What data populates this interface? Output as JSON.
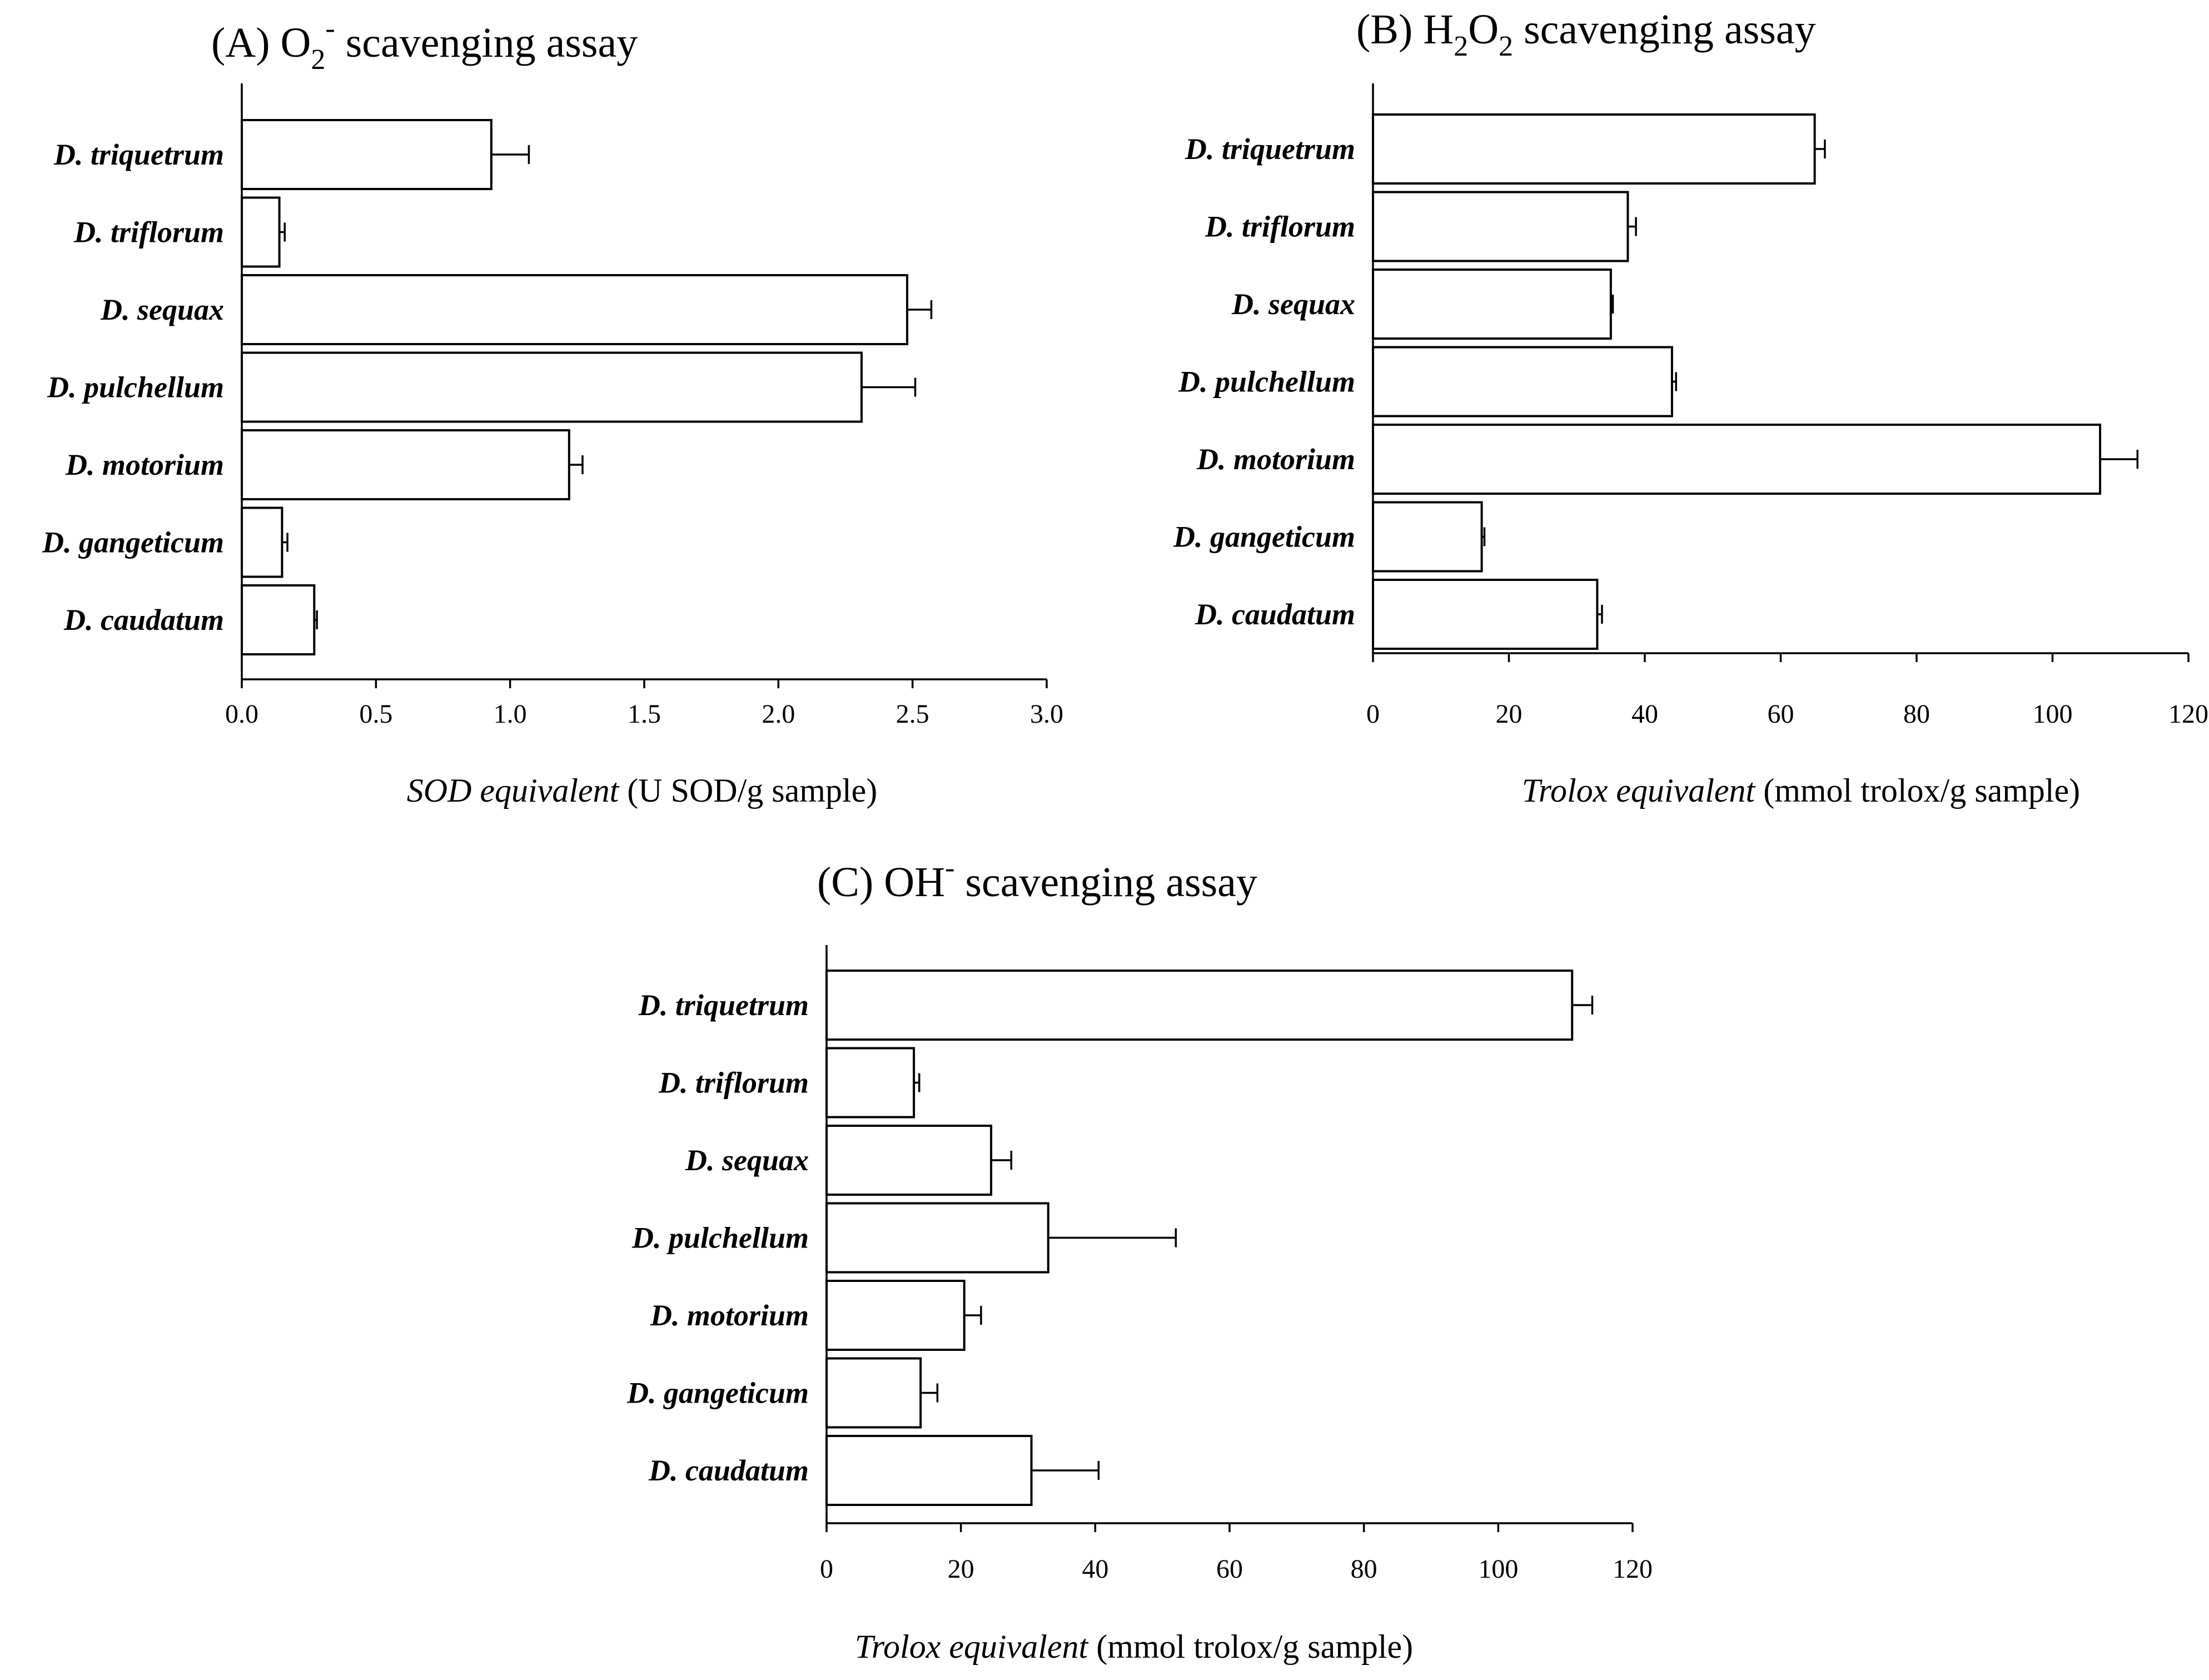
{
  "chart_data": [
    {
      "type": "bar",
      "orientation": "horizontal",
      "title": {
        "prefix": "(A) O",
        "subscript": "2",
        "superscript": "-",
        "suffix": " scavenging assay"
      },
      "categories": [
        "D. triquetrum",
        "D. triflorum",
        "D. sequax",
        "D. pulchellum",
        "D. motorium",
        "D. gangeticum",
        "D. caudatum"
      ],
      "values": [
        0.93,
        0.14,
        2.48,
        2.31,
        1.22,
        0.15,
        0.27
      ],
      "errors": [
        0.14,
        0.02,
        0.09,
        0.2,
        0.05,
        0.02,
        0.01
      ],
      "xlim": [
        0,
        3.0
      ],
      "xticks": [
        "0.0",
        "0.5",
        "1.0",
        "1.5",
        "2.0",
        "2.5",
        "3.0"
      ],
      "xlabel": {
        "italic": "SOD equivalent",
        "normal": " (U SOD/g sample)"
      }
    },
    {
      "type": "bar",
      "orientation": "horizontal",
      "title": {
        "p1": "(B) H",
        "s1": "2",
        "p2": "O",
        "s2": "2",
        "suffix": " scavenging assay"
      },
      "categories": [
        "D. triquetrum",
        "D. triflorum",
        "D. sequax",
        "D. pulchellum",
        "D. motorium",
        "D. gangeticum",
        "D. caudatum"
      ],
      "values": [
        65,
        37.5,
        35,
        44,
        107,
        16,
        33
      ],
      "errors": [
        1.5,
        1.2,
        0.3,
        0.6,
        5.5,
        0.4,
        0.7
      ],
      "xlim": [
        0,
        120
      ],
      "xticks": [
        "0",
        "20",
        "40",
        "60",
        "80",
        "100",
        "120"
      ],
      "xlabel": {
        "italic": "Trolox equivalent",
        "normal": " (mmol trolox/g sample)"
      }
    },
    {
      "type": "bar",
      "orientation": "horizontal",
      "title": {
        "prefix": "(C) OH",
        "superscript": "-",
        "suffix": " scavenging assay"
      },
      "categories": [
        "D. triquetrum",
        "D. triflorum",
        "D. sequax",
        "D. pulchellum",
        "D. motorium",
        "D. gangeticum",
        "D. caudatum"
      ],
      "values": [
        111,
        13,
        24.5,
        33,
        20.5,
        14,
        30.5
      ],
      "errors": [
        3,
        0.8,
        3,
        19,
        2.5,
        2.5,
        10
      ],
      "xlim": [
        0,
        120
      ],
      "xticks": [
        "0",
        "20",
        "40",
        "60",
        "80",
        "100",
        "120"
      ],
      "xlabel": {
        "italic": "Trolox equivalent",
        "normal": " (mmol trolox/g sample)"
      }
    }
  ]
}
